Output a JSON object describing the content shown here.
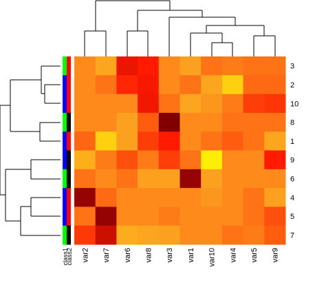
{
  "chart_data": {
    "type": "heatmap",
    "columns": [
      "var2",
      "var7",
      "var6",
      "var8",
      "var3",
      "var1",
      "var10",
      "var4",
      "var5",
      "var9"
    ],
    "rows": [
      "3",
      "2",
      "10",
      "8",
      "1",
      "9",
      "6",
      "4",
      "5",
      "7"
    ],
    "values": [
      [
        0.55,
        0.62,
        0.25,
        0.3,
        0.55,
        0.6,
        0.5,
        0.52,
        0.5,
        0.5
      ],
      [
        0.55,
        0.5,
        0.33,
        0.28,
        0.55,
        0.5,
        0.62,
        0.8,
        0.48,
        0.48
      ],
      [
        0.55,
        0.55,
        0.55,
        0.27,
        0.5,
        0.62,
        0.58,
        0.52,
        0.38,
        0.36
      ],
      [
        0.55,
        0.55,
        0.6,
        0.45,
        0.0,
        0.55,
        0.55,
        0.5,
        0.5,
        0.5
      ],
      [
        0.47,
        0.8,
        0.6,
        0.38,
        0.3,
        0.55,
        0.5,
        0.45,
        0.5,
        0.62
      ],
      [
        0.66,
        0.52,
        0.42,
        0.52,
        0.38,
        0.5,
        0.93,
        0.55,
        0.55,
        0.3
      ],
      [
        0.5,
        0.55,
        0.5,
        0.6,
        0.6,
        0.05,
        0.6,
        0.55,
        0.55,
        0.55
      ],
      [
        0.05,
        0.48,
        0.55,
        0.55,
        0.55,
        0.55,
        0.58,
        0.55,
        0.5,
        0.6
      ],
      [
        0.5,
        0.05,
        0.55,
        0.55,
        0.52,
        0.55,
        0.55,
        0.55,
        0.5,
        0.42
      ],
      [
        0.37,
        0.18,
        0.65,
        0.62,
        0.6,
        0.55,
        0.55,
        0.5,
        0.52,
        0.45
      ]
    ],
    "color_stops": [
      [
        0,
        "#800000"
      ],
      [
        0.3,
        "#ff1a00"
      ],
      [
        0.6,
        "#fca020"
      ],
      [
        1,
        "#ffff00"
      ]
    ],
    "row_annotations": [
      {
        "name": "class1",
        "colors": [
          "#00ff00",
          "#0000ff",
          "#0000ff",
          "#00ff00",
          "#0000ff",
          "#0000ff",
          "#00ff00",
          "#0000ff",
          "#0000ff",
          "#00ff00"
        ]
      },
      {
        "name": "class2",
        "colors": [
          "#ff0000",
          "#ff0000",
          "#ff0000",
          "#000000",
          "#ff0000",
          "#000000",
          "#000000",
          "#ff0000",
          "#ff0000",
          "#000000"
        ]
      }
    ]
  }
}
